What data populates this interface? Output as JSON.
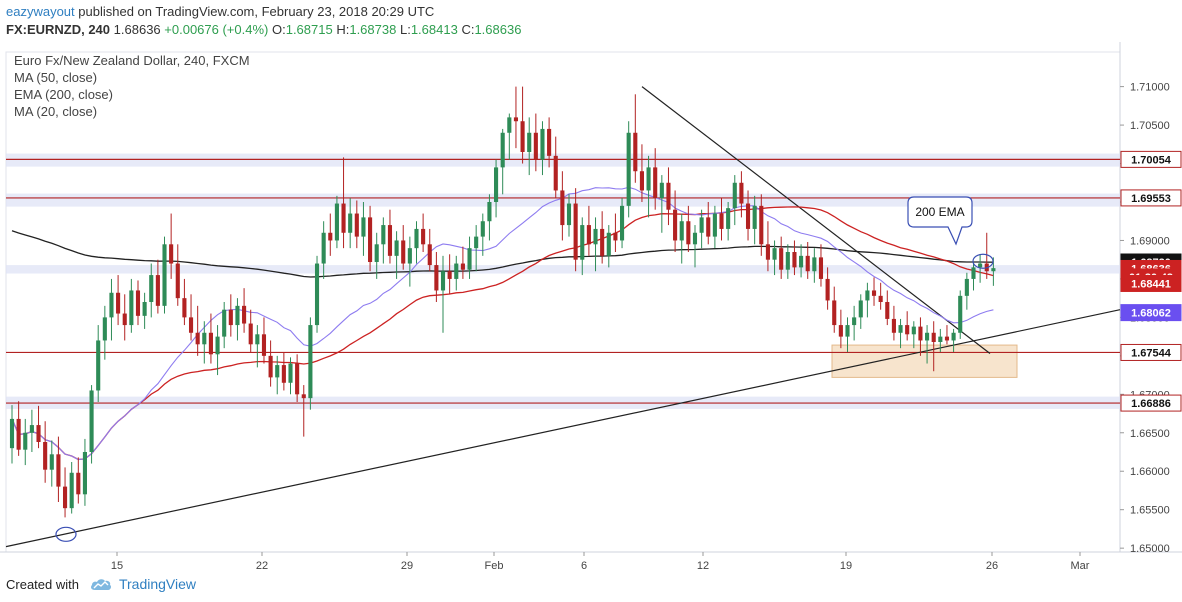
{
  "header": {
    "user": "eazywayout",
    "published_text": "published on TradingView.com, February 23, 2018 20:29 UTC",
    "symbol": "FX:EURNZD, 240",
    "last": "1.68636",
    "change": "+0.00676 (+0.4%)",
    "o_label": "O:",
    "o_value": "1.68715",
    "h_label": "H:",
    "h_value": "1.68738",
    "l_label": "L:",
    "l_value": "1.68413",
    "c_label": "C:",
    "c_value": "1.68636"
  },
  "legend": {
    "title": "Euro Fx/New Zealand Dollar, 240, FXCM",
    "ma50": "MA (50, close)",
    "ema200": "EMA (200, close)",
    "ma20": "MA (20, close)"
  },
  "annotation": {
    "text": "200 EMA"
  },
  "footer": {
    "created_with": "Created with",
    "brand": "TradingView"
  },
  "colors": {
    "up_candle": "#2e8b57",
    "down_candle": "#b22222",
    "ma50": "#cc2222",
    "ema200": "#222222",
    "ma20": "#8e7cf0",
    "resistance_line": "#b22222",
    "zone_fill": "#dfe3f5",
    "support_box": "#f6dfc4",
    "badge_ema200": "#111111",
    "badge_price": "#cc2222",
    "badge_ma20": "#6a4ff0",
    "brand_blue": "#2f7fc1"
  },
  "chart_data": {
    "type": "candlestick",
    "title": "Euro Fx/New Zealand Dollar, 240, FXCM",
    "x_ticks": [
      "15",
      "22",
      "29",
      "Feb",
      "6",
      "12",
      "19",
      "26",
      "Mar"
    ],
    "y_ticks": [
      1.65,
      1.655,
      1.66,
      1.665,
      1.67,
      1.675,
      1.68,
      1.685,
      1.69,
      1.695,
      1.7,
      1.705,
      1.71
    ],
    "y_range": [
      1.6495,
      1.7145
    ],
    "price_labels": [
      {
        "text": "1.70054",
        "value": 1.70054,
        "style": "level"
      },
      {
        "text": "1.69553",
        "value": 1.69553,
        "style": "level"
      },
      {
        "text": "1.68720",
        "value": 1.6872,
        "style": "ema200"
      },
      {
        "text": "1.68636",
        "value": 1.68636,
        "style": "price"
      },
      {
        "text": "01:30:43",
        "value": 1.68527,
        "style": "countdown"
      },
      {
        "text": "1.68441",
        "value": 1.68441,
        "style": "ma50"
      },
      {
        "text": "1.68062",
        "value": 1.68062,
        "style": "ma20"
      },
      {
        "text": "1.67544",
        "value": 1.67544,
        "style": "level"
      },
      {
        "text": "1.66886",
        "value": 1.66886,
        "style": "level"
      }
    ],
    "horizontal_levels": [
      1.70054,
      1.69553,
      1.67544,
      1.66886
    ],
    "zones": [
      {
        "from": 1.6996,
        "to": 1.7013
      },
      {
        "from": 1.6944,
        "to": 1.6961
      },
      {
        "from": 1.6857,
        "to": 1.6868
      },
      {
        "from": 1.6681,
        "to": 1.6697
      }
    ],
    "ohlc": [
      [
        1.663,
        1.6686,
        1.661,
        1.6668
      ],
      [
        1.6668,
        1.6691,
        1.662,
        1.6628
      ],
      [
        1.6628,
        1.6668,
        1.6608,
        1.665
      ],
      [
        1.665,
        1.668,
        1.6625,
        1.666
      ],
      [
        1.666,
        1.6685,
        1.663,
        1.6638
      ],
      [
        1.6638,
        1.6665,
        1.6585,
        1.6602
      ],
      [
        1.6602,
        1.664,
        1.658,
        1.6622
      ],
      [
        1.6622,
        1.6645,
        1.656,
        1.658
      ],
      [
        1.658,
        1.6605,
        1.654,
        1.6552
      ],
      [
        1.6552,
        1.6612,
        1.6545,
        1.6598
      ],
      [
        1.6598,
        1.6618,
        1.6558,
        1.657
      ],
      [
        1.657,
        1.6642,
        1.6555,
        1.6625
      ],
      [
        1.6625,
        1.6712,
        1.661,
        1.6705
      ],
      [
        1.6705,
        1.679,
        1.669,
        1.677
      ],
      [
        1.677,
        1.6815,
        1.6745,
        1.68
      ],
      [
        1.68,
        1.685,
        1.677,
        1.6832
      ],
      [
        1.6832,
        1.6855,
        1.679,
        1.6805
      ],
      [
        1.6805,
        1.683,
        1.677,
        1.679
      ],
      [
        1.679,
        1.685,
        1.678,
        1.6835
      ],
      [
        1.6835,
        1.6848,
        1.679,
        1.6802
      ],
      [
        1.6802,
        1.6832,
        1.6785,
        1.682
      ],
      [
        1.682,
        1.687,
        1.68,
        1.6855
      ],
      [
        1.6855,
        1.6875,
        1.6805,
        1.6815
      ],
      [
        1.6815,
        1.6905,
        1.6805,
        1.6895
      ],
      [
        1.6895,
        1.6935,
        1.685,
        1.687
      ],
      [
        1.687,
        1.6895,
        1.6815,
        1.6825
      ],
      [
        1.6825,
        1.685,
        1.679,
        1.68
      ],
      [
        1.68,
        1.683,
        1.677,
        1.678
      ],
      [
        1.678,
        1.6815,
        1.675,
        1.6765
      ],
      [
        1.6765,
        1.6795,
        1.674,
        1.678
      ],
      [
        1.678,
        1.6805,
        1.674,
        1.6752
      ],
      [
        1.6752,
        1.679,
        1.6725,
        1.6775
      ],
      [
        1.6775,
        1.682,
        1.676,
        1.681
      ],
      [
        1.681,
        1.683,
        1.6775,
        1.679
      ],
      [
        1.679,
        1.6825,
        1.677,
        1.6815
      ],
      [
        1.6815,
        1.6838,
        1.678,
        1.6792
      ],
      [
        1.6792,
        1.681,
        1.6755,
        1.6765
      ],
      [
        1.6765,
        1.679,
        1.6735,
        1.6778
      ],
      [
        1.6778,
        1.68,
        1.674,
        1.675
      ],
      [
        1.675,
        1.677,
        1.671,
        1.6722
      ],
      [
        1.6722,
        1.675,
        1.67,
        1.6738
      ],
      [
        1.6738,
        1.6755,
        1.6705,
        1.6715
      ],
      [
        1.6715,
        1.6748,
        1.67,
        1.674
      ],
      [
        1.674,
        1.6752,
        1.669,
        1.67
      ],
      [
        1.67,
        1.6712,
        1.6645,
        1.6695
      ],
      [
        1.6695,
        1.68,
        1.668,
        1.679
      ],
      [
        1.679,
        1.688,
        1.678,
        1.687
      ],
      [
        1.687,
        1.6925,
        1.685,
        1.691
      ],
      [
        1.691,
        1.6935,
        1.688,
        1.69
      ],
      [
        1.69,
        1.6958,
        1.689,
        1.6948
      ],
      [
        1.6948,
        1.7008,
        1.689,
        1.691
      ],
      [
        1.691,
        1.6955,
        1.689,
        1.6935
      ],
      [
        1.6935,
        1.6952,
        1.689,
        1.6905
      ],
      [
        1.6905,
        1.695,
        1.688,
        1.693
      ],
      [
        1.693,
        1.6945,
        1.686,
        1.6872
      ],
      [
        1.6872,
        1.691,
        1.685,
        1.6895
      ],
      [
        1.6895,
        1.693,
        1.687,
        1.692
      ],
      [
        1.692,
        1.694,
        1.687,
        1.688
      ],
      [
        1.688,
        1.6912,
        1.685,
        1.69
      ],
      [
        1.69,
        1.692,
        1.6862,
        1.687
      ],
      [
        1.687,
        1.6905,
        1.684,
        1.689
      ],
      [
        1.689,
        1.6925,
        1.687,
        1.6915
      ],
      [
        1.6915,
        1.6935,
        1.6885,
        1.6895
      ],
      [
        1.6895,
        1.6915,
        1.686,
        1.6868
      ],
      [
        1.6868,
        1.6885,
        1.682,
        1.6835
      ],
      [
        1.6835,
        1.688,
        1.678,
        1.686
      ],
      [
        1.686,
        1.6882,
        1.683,
        1.685
      ],
      [
        1.685,
        1.688,
        1.6835,
        1.687
      ],
      [
        1.687,
        1.6892,
        1.685,
        1.6862
      ],
      [
        1.6862,
        1.6905,
        1.685,
        1.689
      ],
      [
        1.689,
        1.692,
        1.686,
        1.6905
      ],
      [
        1.6905,
        1.6935,
        1.688,
        1.6925
      ],
      [
        1.6925,
        1.696,
        1.69,
        1.695
      ],
      [
        1.695,
        1.7005,
        1.693,
        1.6995
      ],
      [
        1.6995,
        1.7045,
        1.696,
        1.704
      ],
      [
        1.704,
        1.7065,
        1.7005,
        1.706
      ],
      [
        1.706,
        1.71,
        1.702,
        1.7055
      ],
      [
        1.7055,
        1.71,
        1.7,
        1.7015
      ],
      [
        1.7015,
        1.706,
        1.6985,
        1.704
      ],
      [
        1.704,
        1.7065,
        1.699,
        1.7005
      ],
      [
        1.7005,
        1.7055,
        1.6985,
        1.7045
      ],
      [
        1.7045,
        1.706,
        1.6995,
        1.701
      ],
      [
        1.701,
        1.7035,
        1.6955,
        1.6965
      ],
      [
        1.6965,
        1.699,
        1.69,
        1.692
      ],
      [
        1.692,
        1.696,
        1.6905,
        1.6948
      ],
      [
        1.6948,
        1.6968,
        1.686,
        1.6875
      ],
      [
        1.6875,
        1.693,
        1.6855,
        1.692
      ],
      [
        1.692,
        1.6945,
        1.688,
        1.6895
      ],
      [
        1.6895,
        1.693,
        1.686,
        1.6915
      ],
      [
        1.6915,
        1.6938,
        1.687,
        1.688
      ],
      [
        1.688,
        1.692,
        1.6865,
        1.691
      ],
      [
        1.691,
        1.6935,
        1.6885,
        1.69
      ],
      [
        1.69,
        1.6955,
        1.689,
        1.6945
      ],
      [
        1.6945,
        1.7055,
        1.693,
        1.704
      ],
      [
        1.704,
        1.709,
        1.6975,
        1.699
      ],
      [
        1.699,
        1.7025,
        1.695,
        1.6965
      ],
      [
        1.6965,
        1.701,
        1.693,
        1.6995
      ],
      [
        1.6995,
        1.702,
        1.694,
        1.6955
      ],
      [
        1.6955,
        1.6985,
        1.691,
        1.6975
      ],
      [
        1.6975,
        1.6995,
        1.692,
        1.694
      ],
      [
        1.694,
        1.6965,
        1.6885,
        1.69
      ],
      [
        1.69,
        1.6935,
        1.687,
        1.6925
      ],
      [
        1.6925,
        1.6945,
        1.6885,
        1.6895
      ],
      [
        1.6895,
        1.692,
        1.6865,
        1.691
      ],
      [
        1.691,
        1.694,
        1.689,
        1.693
      ],
      [
        1.693,
        1.695,
        1.6895,
        1.6905
      ],
      [
        1.6905,
        1.6945,
        1.689,
        1.6935
      ],
      [
        1.6935,
        1.6955,
        1.69,
        1.6915
      ],
      [
        1.6915,
        1.695,
        1.69,
        1.6942
      ],
      [
        1.6942,
        1.6985,
        1.692,
        1.6975
      ],
      [
        1.6975,
        1.699,
        1.693,
        1.6948
      ],
      [
        1.6948,
        1.6965,
        1.69,
        1.6915
      ],
      [
        1.6915,
        1.6958,
        1.6895,
        1.6945
      ],
      [
        1.6945,
        1.696,
        1.688,
        1.6895
      ],
      [
        1.6895,
        1.6925,
        1.686,
        1.6875
      ],
      [
        1.6875,
        1.69,
        1.6855,
        1.689
      ],
      [
        1.689,
        1.6905,
        1.685,
        1.6862
      ],
      [
        1.6862,
        1.6895,
        1.685,
        1.6885
      ],
      [
        1.6885,
        1.69,
        1.6855,
        1.6865
      ],
      [
        1.6865,
        1.6895,
        1.6852,
        1.688
      ],
      [
        1.688,
        1.6898,
        1.685,
        1.686
      ],
      [
        1.686,
        1.689,
        1.6845,
        1.6878
      ],
      [
        1.6878,
        1.6895,
        1.684,
        1.685
      ],
      [
        1.685,
        1.6865,
        1.681,
        1.6822
      ],
      [
        1.6822,
        1.684,
        1.678,
        1.679
      ],
      [
        1.679,
        1.681,
        1.676,
        1.6775
      ],
      [
        1.6775,
        1.68,
        1.6755,
        1.679
      ],
      [
        1.679,
        1.6815,
        1.677,
        1.68
      ],
      [
        1.68,
        1.683,
        1.6785,
        1.6822
      ],
      [
        1.6822,
        1.6845,
        1.68,
        1.6835
      ],
      [
        1.6835,
        1.6852,
        1.6815,
        1.6828
      ],
      [
        1.6828,
        1.6845,
        1.681,
        1.682
      ],
      [
        1.682,
        1.6835,
        1.679,
        1.6798
      ],
      [
        1.6798,
        1.6815,
        1.677,
        1.678
      ],
      [
        1.678,
        1.6798,
        1.676,
        1.679
      ],
      [
        1.679,
        1.6808,
        1.677,
        1.6778
      ],
      [
        1.6778,
        1.6795,
        1.676,
        1.6788
      ],
      [
        1.6788,
        1.68,
        1.675,
        1.677
      ],
      [
        1.677,
        1.679,
        1.674,
        1.678
      ],
      [
        1.678,
        1.6795,
        1.673,
        1.6768
      ],
      [
        1.6768,
        1.6785,
        1.6755,
        1.6775
      ],
      [
        1.6775,
        1.679,
        1.6765,
        1.677
      ],
      [
        1.677,
        1.6785,
        1.6755,
        1.678
      ],
      [
        1.678,
        1.6835,
        1.6772,
        1.6828
      ],
      [
        1.6828,
        1.6858,
        1.681,
        1.685
      ],
      [
        1.685,
        1.6872,
        1.6835,
        1.6865
      ],
      [
        1.6865,
        1.6882,
        1.6845,
        1.687
      ],
      [
        1.687,
        1.691,
        1.685,
        1.686
      ],
      [
        1.686,
        1.6878,
        1.6841,
        1.6864
      ]
    ],
    "x_start_date": null
  }
}
